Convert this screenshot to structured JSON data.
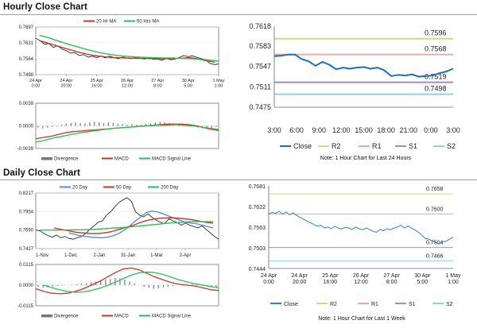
{
  "sections": {
    "hourly_title": "Hourly Close Chart",
    "daily_title": "Daily Close Chart"
  },
  "colors": {
    "ma20": "#c0392b",
    "ma50": "#2ebd59",
    "day20": "#5b8fd6",
    "day50": "#c0392b",
    "day200": "#2ebd59",
    "close_h": "#1f6fb8",
    "close_d": "#3a7fc4",
    "r2": "#c8dc8a",
    "r1": "#eeaaaa",
    "s1": "#9f8fc8",
    "s2": "#8fd0ea",
    "divergence": "#777777",
    "macd": "#c0392b",
    "signal": "#2ebd59",
    "price": "#111111"
  },
  "notes": {
    "hourly": "Note: 1 Hour Chart for Last 24 Hours",
    "daily": "Note: 1 Hour Chart for Last 1 Week"
  },
  "chart_data": [
    {
      "id": "hourly-price",
      "type": "line",
      "legend": [
        "20 Hr MA",
        "50 Hrs MA"
      ],
      "yticks": [
        "0.7697",
        "0.7631",
        "0.7564",
        "0.7498"
      ],
      "ylim": [
        0.7498,
        0.7697
      ],
      "xticks": [
        "24 Apr\n0:00",
        "24 Apr\n20:00",
        "25 Apr\n16:00",
        "26 Apr\n12:00",
        "27 Apr\n8:00",
        "30 Apr\n5:00",
        "1 May\n1:00"
      ],
      "series": [
        {
          "name": "Price",
          "values": [
            0.765,
            0.764,
            0.7625,
            0.7628,
            0.7612,
            0.7618,
            0.7605,
            0.7598,
            0.7588,
            0.759,
            0.7578,
            0.7582,
            0.7571,
            0.7575,
            0.7569,
            0.7575,
            0.7568,
            0.7575,
            0.7569,
            0.7565,
            0.7572,
            0.7567,
            0.7565,
            0.7571,
            0.7566,
            0.7563,
            0.7568,
            0.7562,
            0.7563,
            0.7558,
            0.7566,
            0.756,
            0.7563,
            0.757,
            0.7578,
            0.7573,
            0.7577,
            0.757,
            0.7565,
            0.756,
            0.7545,
            0.754,
            0.7542
          ]
        },
        {
          "name": "20 Hr MA",
          "values": [
            0.764,
            0.7632,
            0.7624,
            0.7616,
            0.7607,
            0.76,
            0.7592,
            0.7586,
            0.758,
            0.7576,
            0.7573,
            0.757,
            0.7569,
            0.7568,
            0.7567,
            0.7566,
            0.7566,
            0.7565,
            0.7565,
            0.7564,
            0.7565,
            0.7566,
            0.7567,
            0.7569,
            0.7566,
            0.756,
            0.7554,
            0.755
          ]
        },
        {
          "name": "50 Hrs MA",
          "values": [
            0.7662,
            0.7655,
            0.7645,
            0.7635,
            0.7625,
            0.7617,
            0.7608,
            0.76,
            0.7593,
            0.7587,
            0.7582,
            0.7578,
            0.7575,
            0.7573,
            0.7571,
            0.757,
            0.7569,
            0.7568,
            0.7568,
            0.7567,
            0.7566,
            0.7565,
            0.7563,
            0.7561,
            0.7558,
            0.7555
          ]
        }
      ]
    },
    {
      "id": "hourly-macd",
      "type": "line",
      "legend": [
        "Divergence",
        "MACD",
        "MACD Signal Line"
      ],
      "yticks": [
        "0.0039",
        "0.0000",
        "-0.0039"
      ],
      "ylim": [
        -0.0039,
        0.0039
      ],
      "series": [
        {
          "name": "Divergence",
          "values": [
            -0.0003,
            -0.0004,
            -0.0003,
            -0.0002,
            -0.0001,
            0.0002,
            0.0004,
            0.0005,
            0.0006,
            0.0005,
            0.0004,
            0.0006,
            0.0007,
            0.0006,
            0.0005,
            0.0006,
            0.0005,
            0.0004,
            0.0003,
            0.0002,
            0.0003,
            0.0002,
            0.0002,
            0.0003,
            0.0004,
            0.0006,
            0.0007,
            0.0006,
            0.0005,
            0.0004,
            0.0003,
            0.0002,
            0.0001,
            -0.0001,
            -0.0003,
            -0.0004,
            -0.0005,
            -0.0004,
            -0.0002
          ]
        },
        {
          "name": "MACD",
          "values": [
            -0.0022,
            -0.002,
            -0.0018,
            -0.0015,
            -0.0012,
            -0.001,
            -0.0009,
            -0.0008,
            -0.0007,
            -0.0006,
            -0.0005,
            -0.0004,
            -0.0003,
            -0.0002,
            -0.0001,
            0.0,
            0.0001,
            0.0002,
            0.0003,
            0.0003,
            0.0003,
            0.0002,
            0.0,
            -0.0003,
            -0.0006,
            -0.0008
          ]
        },
        {
          "name": "MACD Signal Line",
          "values": [
            -0.0028,
            -0.0025,
            -0.0021,
            -0.0018,
            -0.0015,
            -0.0012,
            -0.001,
            -0.0008,
            -0.0006,
            -0.0004,
            -0.0003,
            -0.0002,
            -0.0001,
            0.0,
            0.0001,
            0.0001,
            0.0002,
            0.0001,
            0.0,
            -0.0002,
            -0.0004,
            -0.0006
          ]
        }
      ]
    },
    {
      "id": "hourly-close",
      "type": "line",
      "yticks": [
        "0.7618",
        "0.7583",
        "0.7547",
        "0.7511",
        "0.7475"
      ],
      "ylim": [
        0.7475,
        0.7618
      ],
      "xticks": [
        "3:00",
        "6:00",
        "9:00",
        "12:00",
        "15:00",
        "18:00",
        "21:00",
        "0:00",
        "3:00"
      ],
      "levels": [
        {
          "name": "R2",
          "value": 0.7596,
          "label": "0.7596"
        },
        {
          "name": "R1",
          "value": 0.7568,
          "label": "0.7568"
        },
        {
          "name": "S1",
          "value": 0.7519,
          "label": "0.7519"
        },
        {
          "name": "S2",
          "value": 0.7498,
          "label": "0.7498"
        }
      ],
      "legend": [
        "Close",
        "R2",
        "R1",
        "S1",
        "S2"
      ],
      "series": [
        {
          "name": "Close",
          "values": [
            0.7565,
            0.7566,
            0.7568,
            0.7568,
            0.756,
            0.7556,
            0.7548,
            0.7555,
            0.755,
            0.7542,
            0.7545,
            0.7543,
            0.7545,
            0.7546,
            0.7543,
            0.7545,
            0.754,
            0.753,
            0.7532,
            0.7531,
            0.7533,
            0.7529,
            0.753,
            0.7531,
            0.7535,
            0.7538,
            0.7543
          ]
        }
      ]
    },
    {
      "id": "daily-price",
      "type": "line",
      "legend": [
        "20 Day",
        "50 Day",
        "200 Day"
      ],
      "yticks": [
        "0.8217",
        "0.7954",
        "0.7690",
        "0.7427"
      ],
      "ylim": [
        0.7427,
        0.8217
      ],
      "xticks": [
        "1-Nov",
        "1-Dec",
        "2-Jan",
        "31-Jan",
        "1-Mar",
        "2-Apr"
      ],
      "series": [
        {
          "name": "Price",
          "values": [
            0.769,
            0.768,
            0.764,
            0.761,
            0.759,
            0.762,
            0.758,
            0.76,
            0.757,
            0.756,
            0.758,
            0.76,
            0.764,
            0.77,
            0.775,
            0.78,
            0.782,
            0.79,
            0.795,
            0.802,
            0.808,
            0.812,
            0.815,
            0.81,
            0.795,
            0.79,
            0.788,
            0.792,
            0.787,
            0.783,
            0.78,
            0.778,
            0.785,
            0.782,
            0.78,
            0.776,
            0.779,
            0.776,
            0.774,
            0.772,
            0.775,
            0.77,
            0.765,
            0.76,
            0.756
          ]
        },
        {
          "name": "20 Day",
          "values": [
            0.765,
            0.763,
            0.761,
            0.76,
            0.759,
            0.7585,
            0.758,
            0.759,
            0.761,
            0.764,
            0.769,
            0.775,
            0.782,
            0.788,
            0.794,
            0.796,
            0.795,
            0.792,
            0.789,
            0.786,
            0.783,
            0.78,
            0.779,
            0.778,
            0.776,
            0.774,
            0.772
          ]
        },
        {
          "name": "50 Day",
          "values": [
            0.772,
            0.77,
            0.768,
            0.766,
            0.765,
            0.764,
            0.764,
            0.765,
            0.767,
            0.77,
            0.773,
            0.776,
            0.78,
            0.783,
            0.785,
            0.786,
            0.7865,
            0.786,
            0.785,
            0.784,
            0.782,
            0.78,
            0.779
          ]
        },
        {
          "name": "200 Day",
          "values": [
            0.769,
            0.769,
            0.769,
            0.7692,
            0.7695,
            0.77,
            0.771,
            0.772,
            0.773,
            0.7745,
            0.776,
            0.7775,
            0.779,
            0.78,
            0.781,
            0.781,
            0.781
          ]
        }
      ]
    },
    {
      "id": "daily-macd",
      "type": "line",
      "legend": [
        "Divergence",
        "MACD",
        "MACD Signal Line"
      ],
      "yticks": [
        "0.0115",
        "0.0000",
        "-0.0115"
      ],
      "ylim": [
        -0.0115,
        0.0115
      ],
      "series": [
        {
          "name": "Divergence",
          "values": [
            -0.001,
            -0.0015,
            -0.0012,
            -0.0008,
            -0.0005,
            -0.0002,
            0.0,
            0.0002,
            0.0004,
            0.0008,
            0.0012,
            0.0016,
            0.002,
            0.0024,
            0.003,
            0.0035,
            0.004,
            0.0038,
            0.003,
            0.002,
            0.001,
            0.0,
            -0.001,
            -0.0015,
            -0.002,
            -0.0018,
            -0.0012,
            -0.0008,
            -0.0004,
            0.0,
            0.0002,
            0.0004,
            0.0004,
            0.0002,
            -0.0002,
            -0.0005,
            -0.0008,
            -0.001
          ]
        },
        {
          "name": "MACD",
          "values": [
            -0.002,
            -0.0035,
            -0.0045,
            -0.0048,
            -0.0045,
            -0.0035,
            -0.002,
            0.0,
            0.002,
            0.0045,
            0.007,
            0.009,
            0.0095,
            0.0085,
            0.0065,
            0.0045,
            0.003,
            0.0015,
            0.0005,
            0.0,
            -0.0005,
            -0.0015,
            -0.0025,
            -0.003
          ]
        },
        {
          "name": "MACD Signal Line",
          "values": [
            0.0,
            -0.0012,
            -0.0025,
            -0.0035,
            -0.004,
            -0.0038,
            -0.003,
            -0.0018,
            -0.0003,
            0.0015,
            0.0035,
            0.0055,
            0.0068,
            0.0072,
            0.007,
            0.006,
            0.0045,
            0.003,
            0.0018,
            0.0008,
            0.0,
            -0.0008,
            -0.0015
          ]
        }
      ]
    },
    {
      "id": "daily-close",
      "type": "line",
      "yticks": [
        "0.7681",
        "0.7622",
        "0.7563",
        "0.7503",
        "0.7444"
      ],
      "ylim": [
        0.7444,
        0.7681
      ],
      "xticks": [
        "24 Apr\n0:00",
        "24 Apr\n20:00",
        "25 Apr\n16:00",
        "26 Apr\n12:00",
        "27 Apr\n8:00",
        "30 Apr\n5:00",
        "1 May\n1:00"
      ],
      "levels": [
        {
          "name": "R2",
          "value": 0.7658,
          "label": "0.7658"
        },
        {
          "name": "R1",
          "value": 0.76,
          "label": "0.7600"
        },
        {
          "name": "S1",
          "value": 0.7504,
          "label": "0.7504"
        },
        {
          "name": "S2",
          "value": 0.7466,
          "label": "0.7466"
        }
      ],
      "legend": [
        "Close",
        "R2",
        "R1",
        "S1",
        "S2"
      ],
      "series": [
        {
          "name": "Close",
          "values": [
            0.76,
            0.7605,
            0.7602,
            0.7608,
            0.76,
            0.7606,
            0.7598,
            0.7603,
            0.7597,
            0.759,
            0.7585,
            0.758,
            0.7575,
            0.757,
            0.7565,
            0.7568,
            0.756,
            0.7563,
            0.7558,
            0.7565,
            0.756,
            0.7557,
            0.7562,
            0.756,
            0.7556,
            0.7563,
            0.7558,
            0.7555,
            0.756,
            0.7556,
            0.755,
            0.7548,
            0.7556,
            0.7552,
            0.7558,
            0.7555,
            0.756,
            0.7563,
            0.7568,
            0.756,
            0.7566,
            0.756,
            0.7555,
            0.7548,
            0.754,
            0.753,
            0.7528,
            0.7522,
            0.7518,
            0.7515,
            0.752,
            0.7522,
            0.7528,
            0.7534
          ]
        }
      ]
    }
  ]
}
